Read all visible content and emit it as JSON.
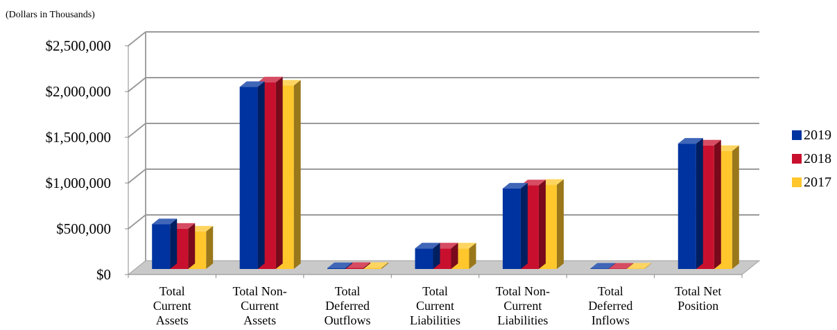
{
  "subtitle": "(Dollars in Thousands)",
  "chart_data": {
    "type": "bar",
    "categories": [
      [
        "Total",
        "Current",
        "Assets"
      ],
      [
        "Total Non-",
        "Current",
        "Assets"
      ],
      [
        "Total",
        "Deferred",
        "Outflows"
      ],
      [
        "Total",
        "Current",
        "Liabilities"
      ],
      [
        "Total Non-",
        "Current",
        "Liabilities"
      ],
      [
        "Total",
        "Deferred",
        "Inflows"
      ],
      [
        "Total Net",
        "Position"
      ]
    ],
    "series": [
      {
        "name": "2019",
        "color": "#0033a0",
        "values": [
          490000,
          1990000,
          10000,
          225000,
          880000,
          5000,
          1370000
        ]
      },
      {
        "name": "2018",
        "color": "#c8102e",
        "values": [
          440000,
          2040000,
          12000,
          225000,
          915000,
          5000,
          1350000
        ]
      },
      {
        "name": "2017",
        "color": "#ffc72c",
        "values": [
          410000,
          2005000,
          12000,
          225000,
          920000,
          5000,
          1290000
        ]
      }
    ],
    "ylim": [
      0,
      2500000
    ],
    "yticks": [
      "$0",
      "$500,000",
      "$1,000,000",
      "$1,500,000",
      "$2,000,000",
      "$2,500,000"
    ],
    "grid": true,
    "legend_position": "right",
    "three_d": true
  }
}
